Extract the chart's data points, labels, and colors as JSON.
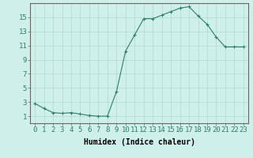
{
  "x": [
    0,
    1,
    2,
    3,
    4,
    5,
    6,
    7,
    8,
    9,
    10,
    11,
    12,
    13,
    14,
    15,
    16,
    17,
    18,
    19,
    20,
    21,
    22,
    23
  ],
  "y": [
    2.8,
    2.1,
    1.5,
    1.4,
    1.5,
    1.3,
    1.1,
    1.0,
    1.0,
    4.5,
    10.2,
    12.5,
    14.8,
    14.8,
    15.3,
    15.8,
    16.3,
    16.5,
    15.2,
    14.0,
    12.2,
    10.8,
    10.8,
    10.8
  ],
  "xlim": [
    -0.5,
    23.5
  ],
  "ylim": [
    0,
    17
  ],
  "yticks": [
    1,
    3,
    5,
    7,
    9,
    11,
    13,
    15
  ],
  "xticks": [
    0,
    1,
    2,
    3,
    4,
    5,
    6,
    7,
    8,
    9,
    10,
    11,
    12,
    13,
    14,
    15,
    16,
    17,
    18,
    19,
    20,
    21,
    22,
    23
  ],
  "xlabel": "Humidex (Indice chaleur)",
  "line_color": "#2e7d6e",
  "marker": "+",
  "bg_color": "#cff0ea",
  "grid_color": "#b0d8d2",
  "xlabel_fontsize": 7,
  "tick_fontsize": 6.5
}
